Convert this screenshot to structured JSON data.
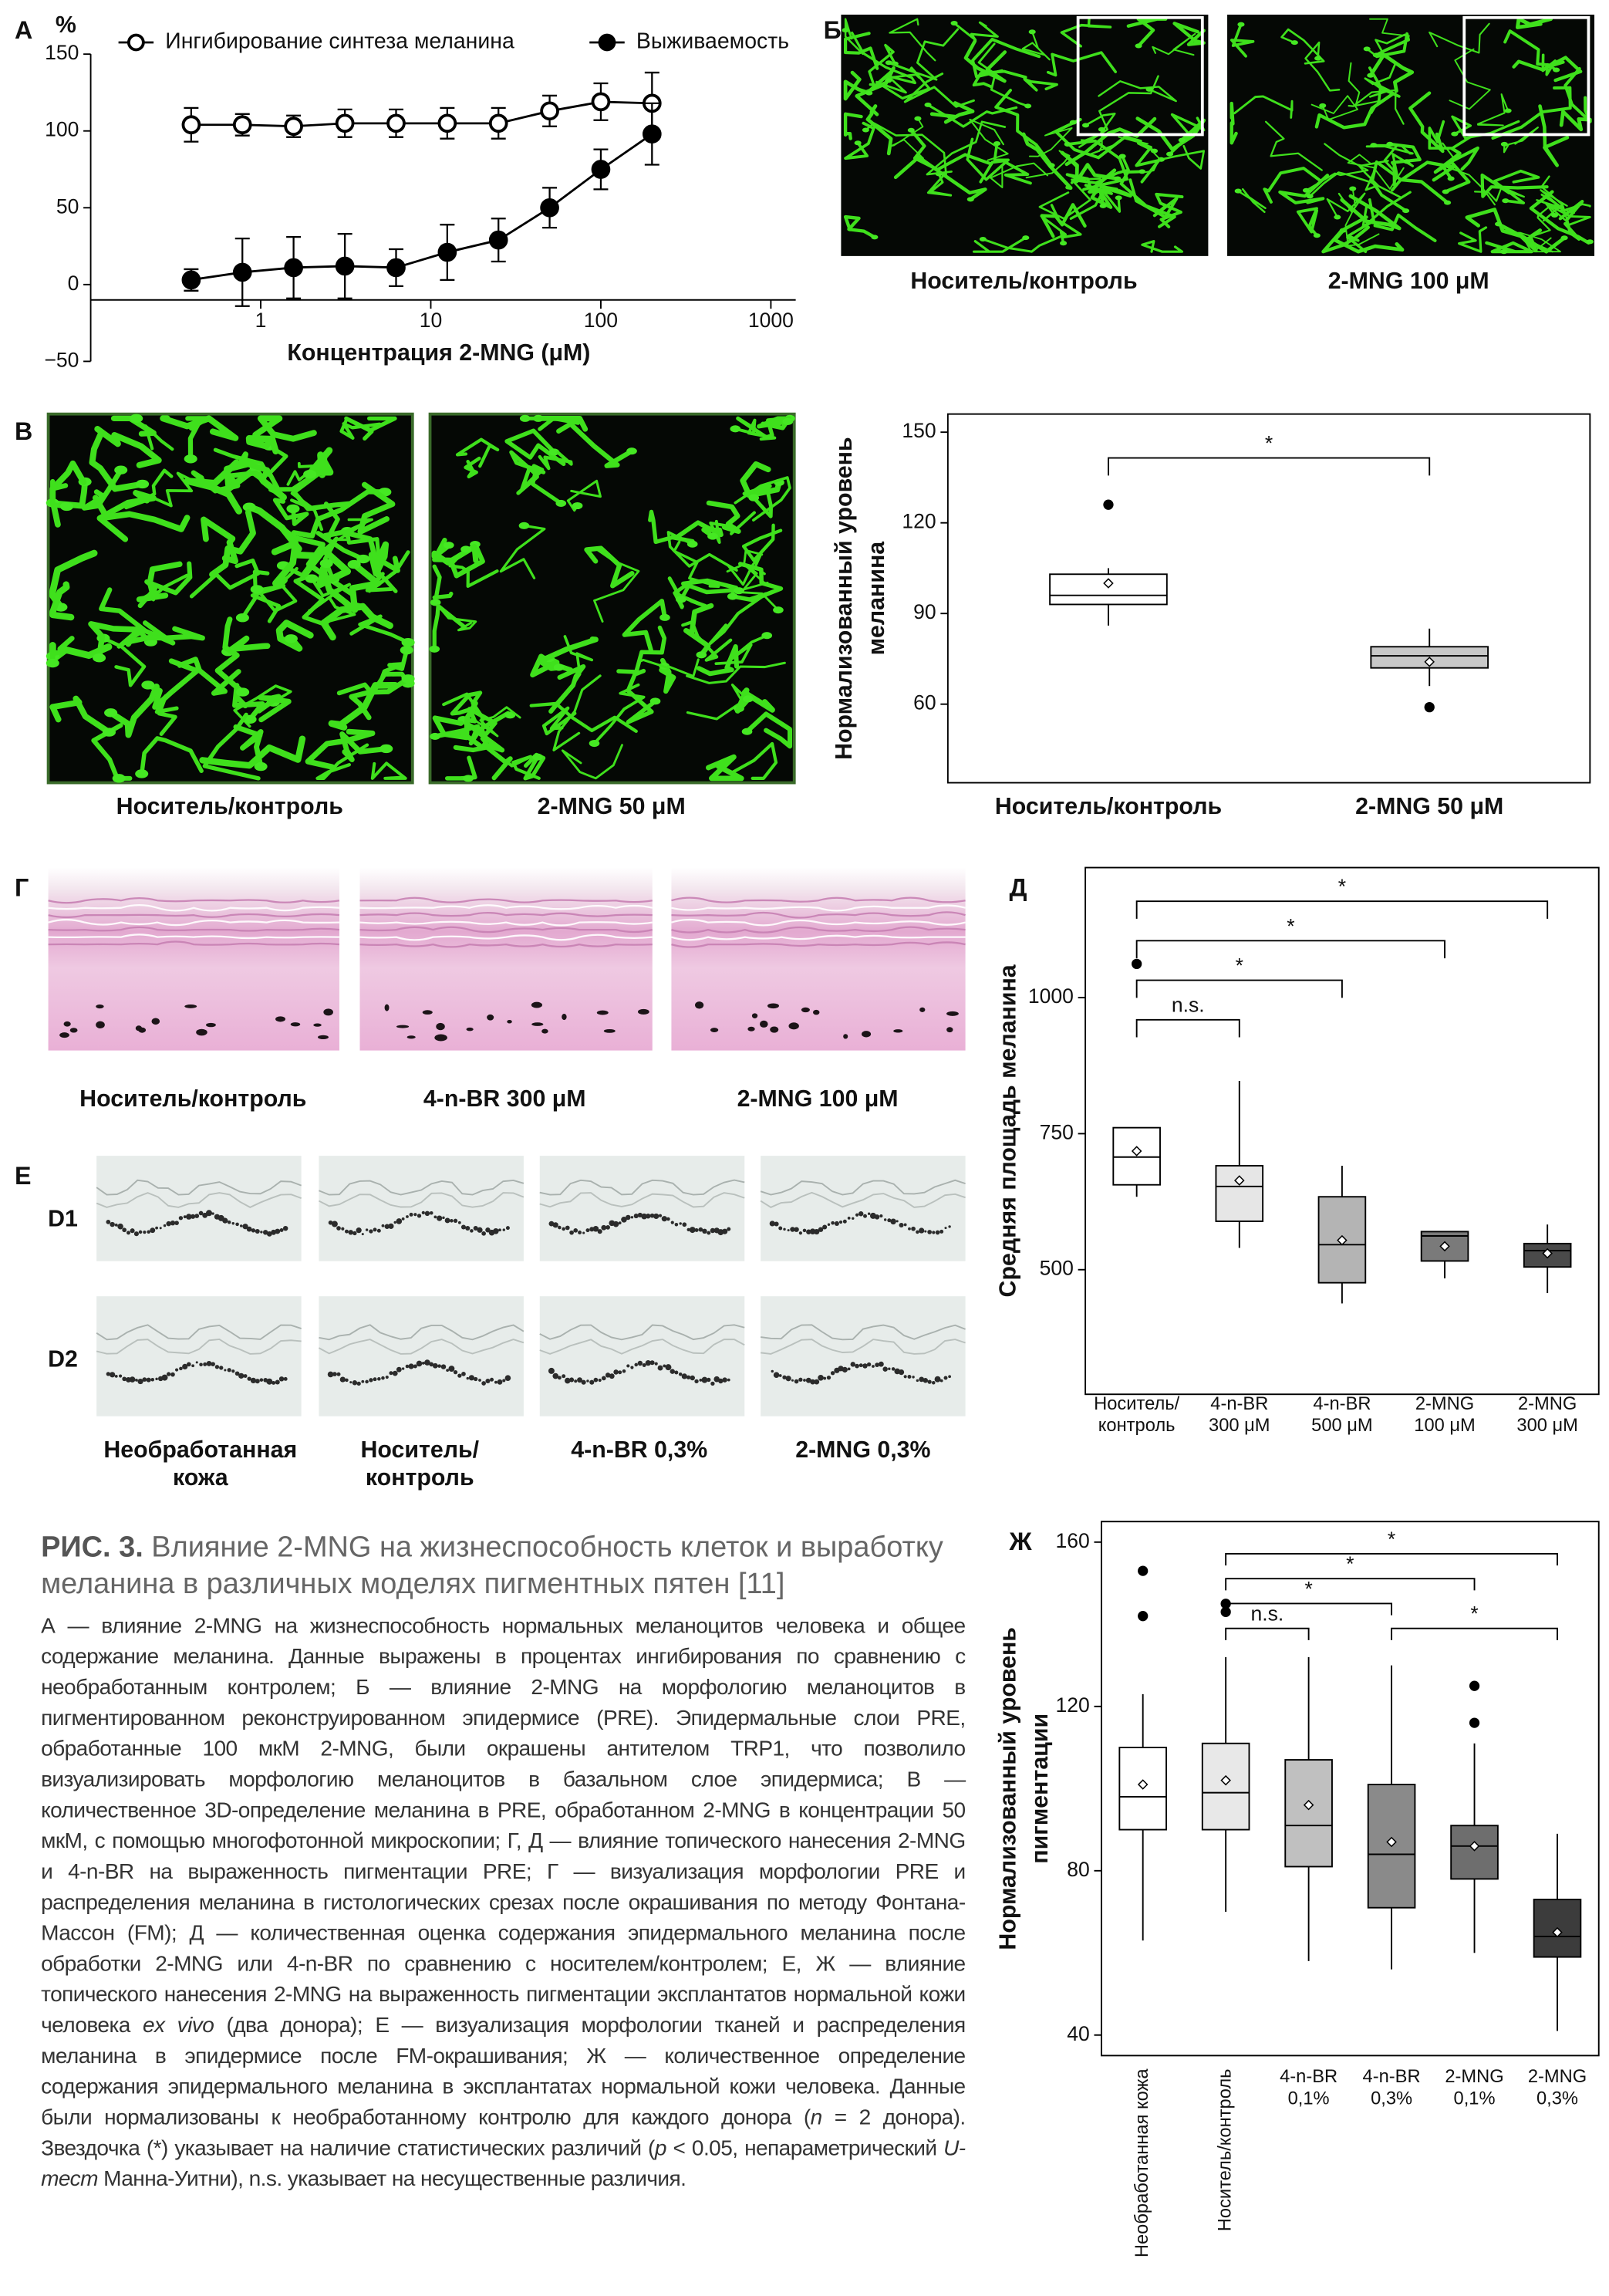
{
  "panel_letters": [
    "А",
    "Б",
    "В",
    "Г",
    "Д",
    "Е",
    "Ж"
  ],
  "image_labels": {
    "b": [
      "Носитель/контроль",
      "2-MNG 100 μM"
    ],
    "v": [
      "Носитель/контроль",
      "2-MNG 50 μM"
    ],
    "g": [
      "Носитель/контроль",
      "4-n-BR 300 μM",
      "2-MNG 100 μM"
    ],
    "e_rows": [
      "D1",
      "D2"
    ],
    "e_cols": [
      [
        "Необработанная",
        "кожа"
      ],
      [
        "Носитель/",
        "контроль"
      ],
      [
        "4-n-BR 0,3%"
      ],
      [
        "2-MNG 0,3%"
      ]
    ]
  },
  "chart_data": [
    {
      "type": "line",
      "xscale": "log",
      "ylabel": "%",
      "xlabel": "Концентрация 2-MNG (μM)",
      "x": [
        0.39,
        0.78,
        1.56,
        3.125,
        6.25,
        12.5,
        25,
        50,
        100,
        200
      ],
      "xlim": [
        0.1,
        1400
      ],
      "xticks": [
        1,
        10,
        100,
        1000
      ],
      "ylim": [
        -50,
        150
      ],
      "yticks": [
        {
          "value": -50,
          "label": "−50"
        },
        0,
        50,
        100,
        150
      ],
      "series": [
        {
          "name": "Ингибирование синтеза меланина",
          "color": "#000000",
          "marker": "open",
          "values": [
            104,
            104,
            103,
            105,
            105,
            105,
            105,
            113,
            119,
            118
          ],
          "errors": [
            11,
            7,
            7,
            9,
            9,
            10,
            10,
            10,
            12,
            20
          ]
        },
        {
          "name": "Выживаемость",
          "color": "#000000",
          "marker": "filled",
          "values": [
            3,
            8,
            11,
            12,
            11,
            21,
            29,
            50,
            75,
            98
          ],
          "errors": [
            7,
            22,
            20,
            21,
            12,
            18,
            14,
            13,
            13,
            20
          ]
        }
      ]
    },
    {
      "type": "box",
      "ylabel": [
        "Нормализованный уровень",
        "меланина"
      ],
      "categories": [
        "Носитель/контроль",
        "2-MNG 50 μM"
      ],
      "ylim": [
        34,
        156
      ],
      "yticks": [
        60,
        90,
        120,
        150
      ],
      "boxes": [
        {
          "min": 86,
          "q1": 93,
          "median": 96,
          "q3": 103,
          "max": 105,
          "mean": 100,
          "outliers": [
            126
          ],
          "color": "#ffffff"
        },
        {
          "min": 66,
          "q1": 72,
          "median": 76,
          "q3": 79,
          "max": 85,
          "mean": 74,
          "outliers": [
            59
          ],
          "color": "#c8c8c8"
        }
      ],
      "annotations": [
        {
          "from": 0,
          "to": 1,
          "label": "*"
        }
      ]
    },
    {
      "type": "box",
      "ylabel": [
        "Средняя площадь меланина"
      ],
      "categories": [
        [
          "Носитель/",
          "контроль"
        ],
        [
          "4-n-BR",
          "300 μM"
        ],
        [
          "4-n-BR",
          "500 μM"
        ],
        [
          "2-MNG",
          "100 μM"
        ],
        [
          "2-MNG",
          "300 μM"
        ]
      ],
      "ylim": [
        271,
        1239
      ],
      "yticks": [
        500,
        750,
        1000
      ],
      "boxes": [
        {
          "min": 634,
          "q1": 656,
          "median": 707,
          "q3": 761,
          "max": 761,
          "mean": 718,
          "outliers": [
            1062
          ],
          "color": "#ffffff"
        },
        {
          "min": 540,
          "q1": 589,
          "median": 653,
          "q3": 691,
          "max": 847,
          "mean": 664,
          "outliers": [],
          "color": "#e6e6e6"
        },
        {
          "min": 438,
          "q1": 476,
          "median": 546,
          "q3": 634,
          "max": 691,
          "mean": 554,
          "outliers": [],
          "color": "#b4b4b4"
        },
        {
          "min": 484,
          "q1": 516,
          "median": 562,
          "q3": 570,
          "max": 570,
          "mean": 543,
          "outliers": [],
          "color": "#7a7a7a"
        },
        {
          "min": 457,
          "q1": 505,
          "median": 535,
          "q3": 548,
          "max": 583,
          "mean": 530,
          "outliers": [],
          "color": "#4a4a4a"
        }
      ],
      "annotations": [
        {
          "from": 0,
          "to": 1,
          "label": "n.s."
        },
        {
          "from": 0,
          "to": 2,
          "label": "*"
        },
        {
          "from": 0,
          "to": 3,
          "label": "*"
        },
        {
          "from": 0,
          "to": 4,
          "label": "*"
        }
      ]
    },
    {
      "type": "box",
      "ylabel": [
        "Нормализованный уровень",
        "пигментации"
      ],
      "categories": [
        [
          "Необработанная кожа"
        ],
        [
          "Носитель/контроль"
        ],
        [
          "4-n-BR",
          "0,1%"
        ],
        [
          "4-n-BR",
          "0,3%"
        ],
        [
          "2-MNG",
          "0,1%"
        ],
        [
          "2-MNG",
          "0,3%"
        ]
      ],
      "ylim": [
        35,
        165
      ],
      "yticks": [
        40,
        80,
        120,
        160
      ],
      "boxes": [
        {
          "min": 63,
          "q1": 90,
          "median": 98,
          "q3": 110,
          "max": 123,
          "mean": 101,
          "outliers": [
            153,
            142
          ],
          "color": "#ffffff"
        },
        {
          "min": 70,
          "q1": 90,
          "median": 99,
          "q3": 111,
          "max": 132,
          "mean": 102,
          "outliers": [
            145,
            143
          ],
          "color": "#e8e8e8"
        },
        {
          "min": 58,
          "q1": 81,
          "median": 91,
          "q3": 107,
          "max": 132,
          "mean": 96,
          "outliers": [],
          "color": "#c0c0c0"
        },
        {
          "min": 56,
          "q1": 71,
          "median": 84,
          "q3": 101,
          "max": 130,
          "mean": 87,
          "outliers": [],
          "color": "#8a8a8a"
        },
        {
          "min": 60,
          "q1": 78,
          "median": 86,
          "q3": 91,
          "max": 111,
          "mean": 86,
          "outliers": [
            125,
            116
          ],
          "color": "#6e6e6e"
        },
        {
          "min": 41,
          "q1": 59,
          "median": 64,
          "q3": 73,
          "max": 89,
          "mean": 65,
          "outliers": [],
          "color": "#3c3c3c"
        }
      ],
      "annotations": [
        {
          "from": 1,
          "to": 2,
          "label": "n.s."
        },
        {
          "from": 3,
          "to": 5,
          "label": "*"
        },
        {
          "from": 1,
          "to": 3,
          "label": "*"
        },
        {
          "from": 1,
          "to": 4,
          "label": "*"
        },
        {
          "from": 1,
          "to": 5,
          "label": "*"
        }
      ]
    }
  ],
  "caption": {
    "label": "РИС. 3.",
    "title": "Влияние 2-MNG на жизнеспособность клеток и выработку меланина в различных моделях пигментных пятен [11]",
    "body": [
      "А — влияние 2-MNG на жизнеспособность нормальных меланоцитов человека и общее содержание меланина. Данные выражены в процентах ингибирования по сравнению с необработанным контролем; Б — влияние 2-MNG на морфологию меланоцитов в пигментированном реконструированном эпидермисе (PRE). Эпидермальные слои PRE, обработанные 100 мкМ 2-MNG, были окрашены антителом TRP1, что позволило визуализировать морфологию меланоцитов в базальном слое эпидермиса; В — количественное 3D-определение меланина в PRE, обработанном 2-MNG в концентрации 50 мкМ, с помощью многофотонной микроскопии; Г, Д — влияние топического нанесения 2-MNG и 4-n-BR на выраженность пигментации PRE; Г — визуализация морфологии PRE и распределения меланина в гистологических срезах после окрашивания по методу Фонтана-Массон (FM); Д — количественная оценка содержания эпидермального меланина после обработки 2-MNG или 4-n-BR по сравнению с носителем/контролем; Е, Ж — влияние топического нанесения 2-MNG на выраженность пигментации эксплантатов нормальной кожи человека ",
      "ex vivo",
      " (два донора); Е — визуализация морфологии тканей и распределения меланина в эпидермисе после FM-окрашивания; Ж — количественное определение содержания эпидермального меланина в эксплантатах нормальной кожи человека. Данные были нормализованы к необработанному контролю для каждого донора (",
      "n",
      " = 2 донора). Звездочка (*) указывает на наличие статистических различий (",
      "p",
      " < 0.05, непараметрический ",
      "U-тест",
      " Манна-Уитни), n.s. указывает на несущественные различия."
    ]
  }
}
